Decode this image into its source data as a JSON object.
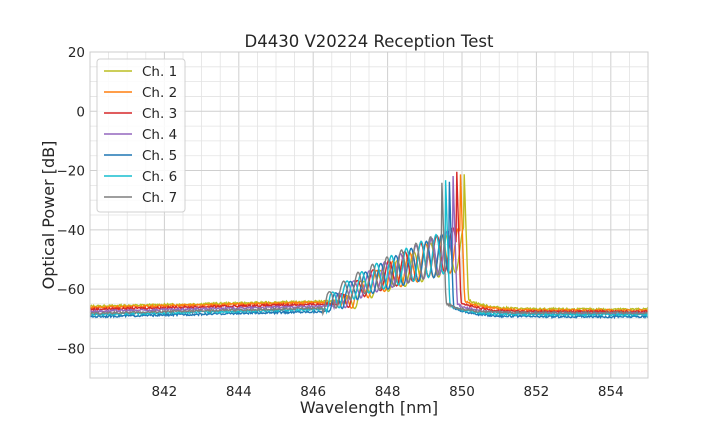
{
  "chart_data": {
    "type": "line",
    "title": "D4430 V20224 Reception Test",
    "xlabel": "Wavelength [nm]",
    "ylabel": "Optical Power [dB]",
    "xlim": [
      840,
      855
    ],
    "ylim": [
      -90,
      20
    ],
    "xticks": [
      842,
      844,
      846,
      848,
      850,
      852,
      854
    ],
    "yticks": [
      -80,
      -60,
      -40,
      -20,
      0,
      20
    ],
    "xtick_labels": [
      "842",
      "844",
      "846",
      "848",
      "850",
      "852",
      "854"
    ],
    "ytick_labels": [
      "−80",
      "−60",
      "−40",
      "−20",
      "0",
      "20"
    ],
    "grid": true,
    "legend_position": "top-left",
    "series": [
      {
        "name": "Ch. 1",
        "color": "#bcbd22",
        "floor_left": -65.8,
        "floor_right": -66.8,
        "edge_right": 850.05,
        "peak": -17.5,
        "period": 0.45,
        "phase": 0.0
      },
      {
        "name": "Ch. 2",
        "color": "#ff7f0e",
        "floor_left": -66.2,
        "floor_right": -67.2,
        "edge_right": 849.95,
        "peak": -17.5,
        "period": 0.44,
        "phase": 0.05
      },
      {
        "name": "Ch. 3",
        "color": "#d62728",
        "floor_left": -66.8,
        "floor_right": -67.6,
        "edge_right": 849.85,
        "peak": -16.5,
        "period": 0.43,
        "phase": 0.1
      },
      {
        "name": "Ch. 4",
        "color": "#9467bd",
        "floor_left": -67.5,
        "floor_right": -68.2,
        "edge_right": 849.75,
        "peak": -18.0,
        "period": 0.42,
        "phase": 0.15
      },
      {
        "name": "Ch. 5",
        "color": "#1f77b4",
        "floor_left": -69.3,
        "floor_right": -69.3,
        "edge_right": 849.65,
        "peak": -20.0,
        "period": 0.41,
        "phase": 0.2
      },
      {
        "name": "Ch. 6",
        "color": "#17becf",
        "floor_left": -68.6,
        "floor_right": -68.6,
        "edge_right": 849.55,
        "peak": -19.5,
        "period": 0.4,
        "phase": 0.25
      },
      {
        "name": "Ch. 7",
        "color": "#7f7f7f",
        "floor_left": -68.2,
        "floor_right": -68.0,
        "edge_right": 849.45,
        "peak": -20.5,
        "period": 0.39,
        "phase": 0.3
      }
    ]
  }
}
